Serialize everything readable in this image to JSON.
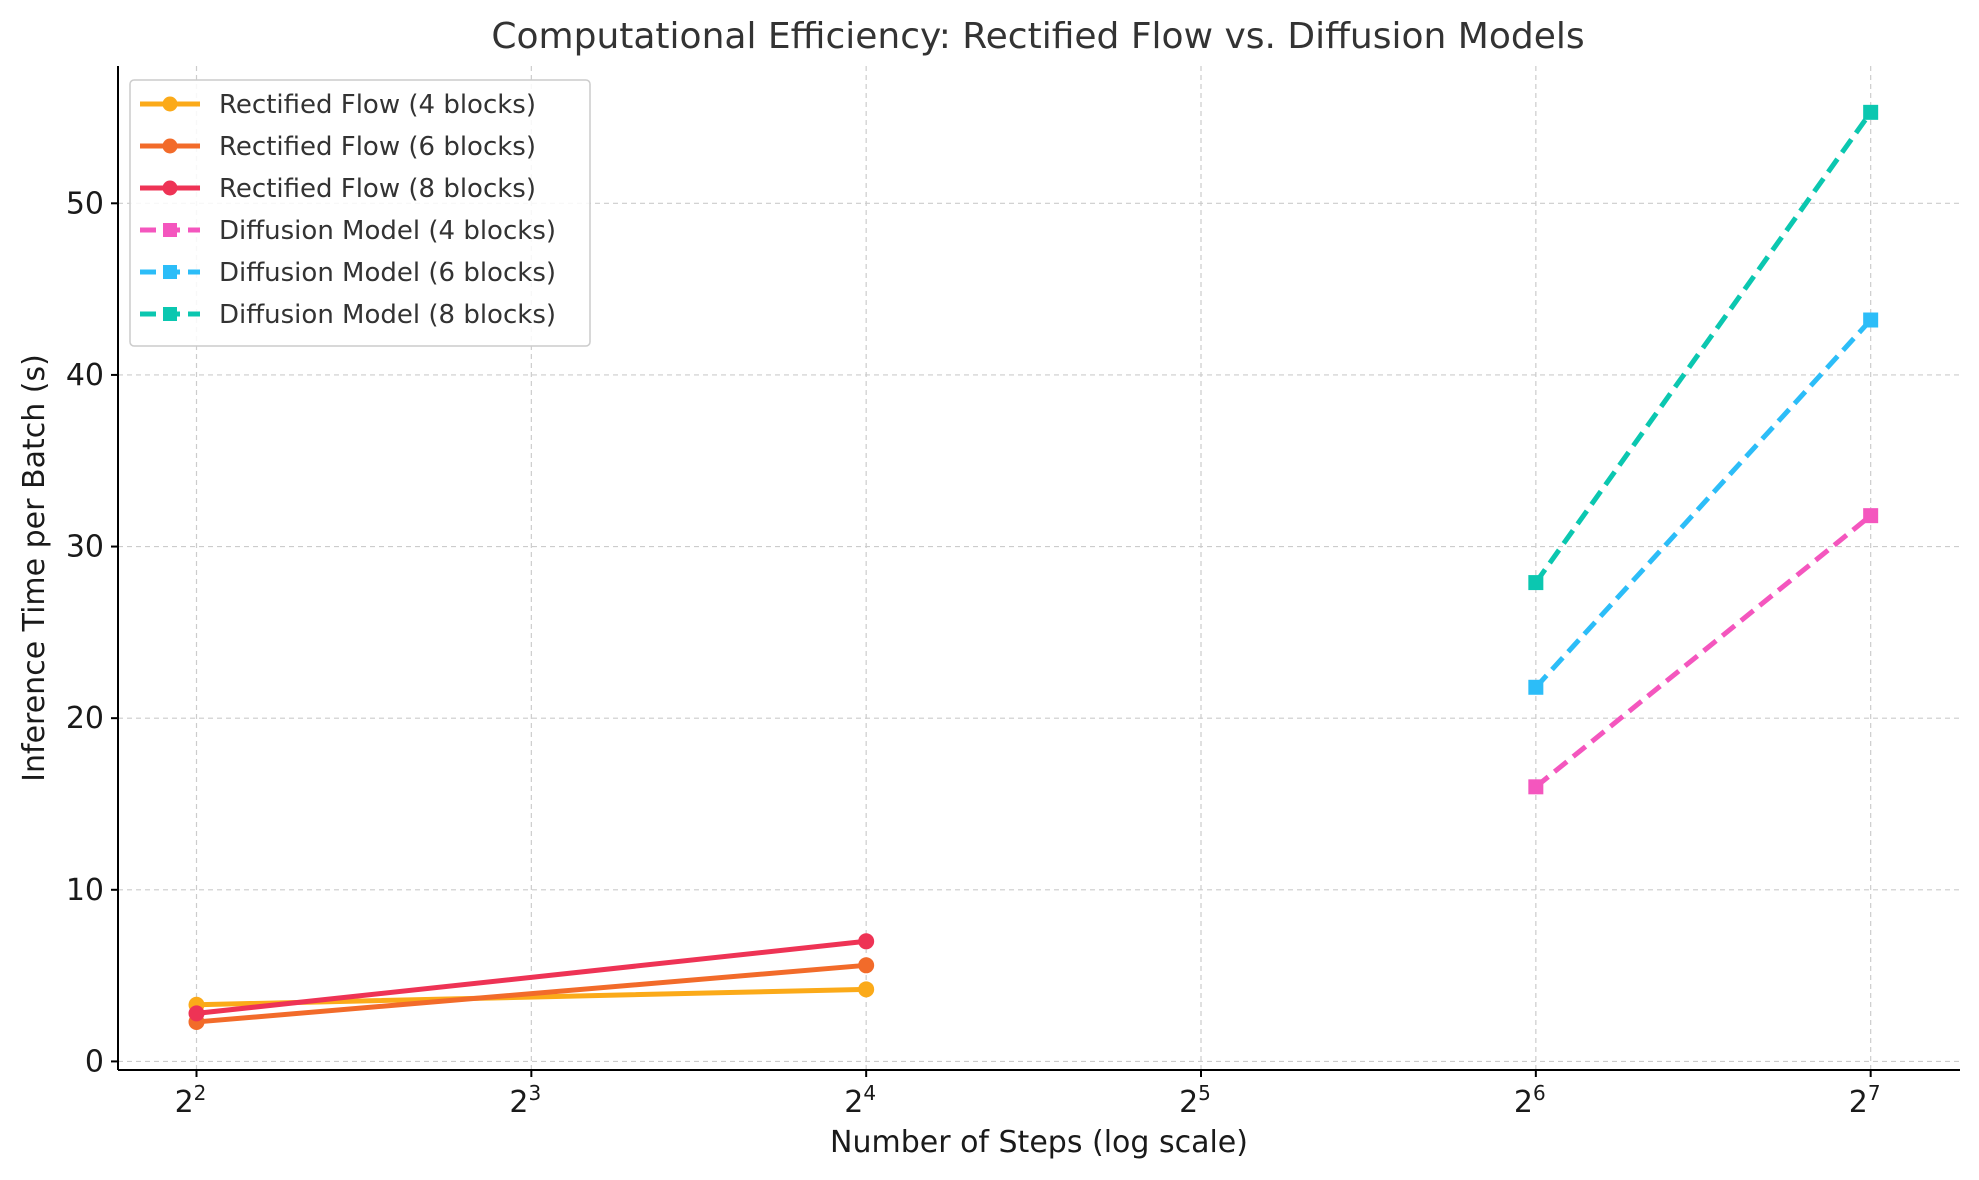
{
  "chart_data": {
    "type": "line",
    "title": "Computational Efficiency: Rectified Flow vs. Diffusion Models",
    "xlabel": "Number of Steps (log scale)",
    "ylabel": "Inference Time per Batch (s)",
    "xscale": "log2",
    "xlim": [
      3.4,
      154
    ],
    "ylim": [
      -0.5,
      58
    ],
    "x_ticks": [
      {
        "value": 4,
        "base": "2",
        "exp": "2"
      },
      {
        "value": 8,
        "base": "2",
        "exp": "3"
      },
      {
        "value": 16,
        "base": "2",
        "exp": "4"
      },
      {
        "value": 32,
        "base": "2",
        "exp": "5"
      },
      {
        "value": 64,
        "base": "2",
        "exp": "6"
      },
      {
        "value": 128,
        "base": "2",
        "exp": "7"
      }
    ],
    "y_ticks": [
      {
        "value": 0,
        "label": "0"
      },
      {
        "value": 10,
        "label": "10"
      },
      {
        "value": 20,
        "label": "20"
      },
      {
        "value": 30,
        "label": "30"
      },
      {
        "value": 40,
        "label": "40"
      },
      {
        "value": 50,
        "label": "50"
      }
    ],
    "grid": true,
    "legend_position": "top-left",
    "series": [
      {
        "name": "Rectified Flow (4 blocks)",
        "color": "#FBAA19",
        "linestyle": "solid",
        "marker": "circle",
        "x": [
          4,
          16
        ],
        "y": [
          3.3,
          4.2
        ]
      },
      {
        "name": "Rectified Flow (6 blocks)",
        "color": "#F26B2A",
        "linestyle": "solid",
        "marker": "circle",
        "x": [
          4,
          16
        ],
        "y": [
          2.3,
          5.6
        ]
      },
      {
        "name": "Rectified Flow (8 blocks)",
        "color": "#EE3355",
        "linestyle": "solid",
        "marker": "circle",
        "x": [
          4,
          16
        ],
        "y": [
          2.8,
          7.0
        ]
      },
      {
        "name": "Diffusion Model (4 blocks)",
        "color": "#F456BE",
        "linestyle": "dashed",
        "marker": "square",
        "x": [
          64,
          128
        ],
        "y": [
          16.0,
          31.8
        ]
      },
      {
        "name": "Diffusion Model (6 blocks)",
        "color": "#2CBDF8",
        "linestyle": "dashed",
        "marker": "square",
        "x": [
          64,
          128
        ],
        "y": [
          21.8,
          43.2
        ]
      },
      {
        "name": "Diffusion Model (8 blocks)",
        "color": "#0BC7B0",
        "linestyle": "dashed",
        "marker": "square",
        "x": [
          64,
          128
        ],
        "y": [
          27.9,
          55.3
        ]
      }
    ]
  }
}
